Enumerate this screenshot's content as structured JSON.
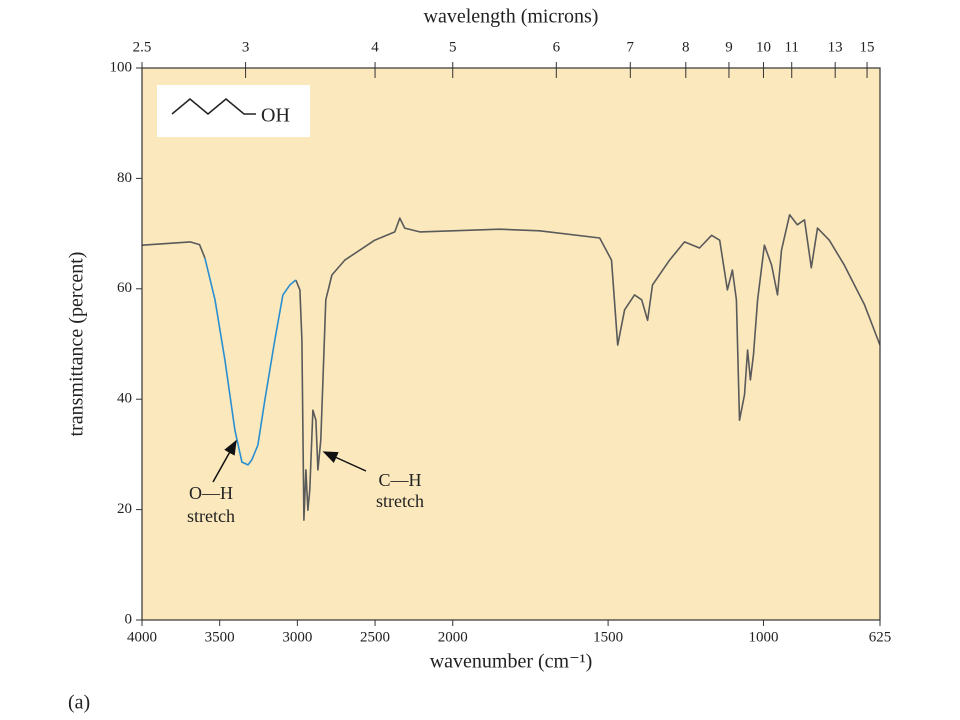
{
  "chart_data": {
    "type": "line",
    "x2label": "wavelength (microns)",
    "xlabel": "wavenumber (cm⁻¹)",
    "ylabel": "transmittance (percent)",
    "caption": "(a)",
    "xlim": [
      4000,
      625
    ],
    "xscale_break": 2000,
    "xscale_ratio": 2,
    "xticks": [
      4000,
      3500,
      3000,
      2500,
      2000,
      1500,
      1000,
      625
    ],
    "x2ticks": [
      2.5,
      3,
      4,
      5,
      6,
      7,
      8,
      9,
      10,
      11,
      13,
      15
    ],
    "ylim": [
      0,
      100
    ],
    "yticks": [
      0,
      20,
      40,
      60,
      80,
      100
    ],
    "background": "#fbe8bd",
    "inset": {
      "label": "OH",
      "color": "#c8237b"
    },
    "annotations": [
      {
        "lines": [
          "O—H",
          "stretch"
        ]
      },
      {
        "lines": [
          "C—H",
          "stretch"
        ]
      }
    ],
    "series": [
      {
        "color": "#5a5a5a",
        "x": [
          4000,
          3690,
          3630,
          3595,
          3010,
          3010,
          2984,
          2971,
          2958,
          2945,
          2932,
          2920,
          2900,
          2881,
          2868,
          2849,
          2817,
          2778,
          2695,
          2502,
          2373,
          2341,
          2309,
          2212,
          2000,
          1849,
          1720,
          1527,
          1489,
          1469,
          1447,
          1415,
          1392,
          1373,
          1357,
          1302,
          1254,
          1206,
          1167,
          1141,
          1116,
          1100,
          1087,
          1077,
          1061,
          1051,
          1042,
          1032,
          1019,
          997,
          974,
          955,
          942,
          916,
          891,
          868,
          846,
          826,
          788,
          740,
          675,
          625
        ],
        "values": [
          67.9,
          68.5,
          68,
          65.6,
          null,
          61.6,
          59.8,
          50.7,
          18.1,
          27.2,
          19.9,
          23.6,
          38,
          36.2,
          27.2,
          32.6,
          58,
          62.5,
          65.2,
          68.8,
          70.3,
          72.8,
          71,
          70.3,
          70.5,
          70.8,
          70.5,
          69.2,
          65.2,
          49.8,
          56.2,
          58.9,
          58,
          54.3,
          60.7,
          65.2,
          68.5,
          67.4,
          69.7,
          68.8,
          59.8,
          63.4,
          58,
          36.2,
          40.8,
          48.9,
          43.5,
          48.1,
          58,
          67.9,
          64.3,
          58.9,
          67,
          73.4,
          71.6,
          72.5,
          63.8,
          71,
          68.8,
          64.3,
          57.1,
          49.8
        ]
      },
      {
        "color": "#2a8fd0",
        "x": [
          3595,
          3530,
          3466,
          3402,
          3357,
          3318,
          3293,
          3254,
          3209,
          3145,
          3093,
          3048,
          3010
        ],
        "values": [
          65.6,
          58,
          47,
          34.4,
          28.6,
          28.1,
          29,
          31.7,
          39.9,
          50.7,
          58.9,
          60.7,
          61.6
        ]
      }
    ]
  }
}
